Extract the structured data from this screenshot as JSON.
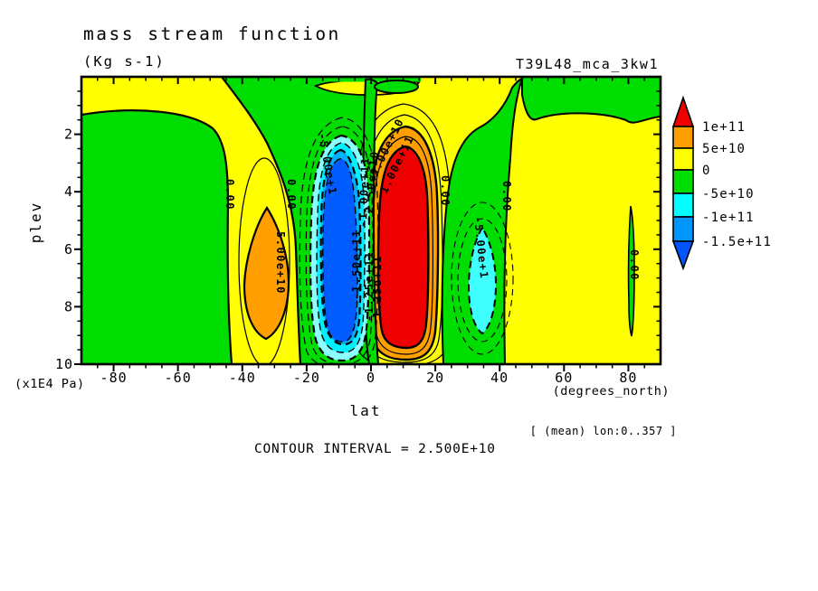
{
  "header": {
    "title": "mass stream function",
    "units": "(Kg s-1)",
    "run_id": "T39L48_mca_3kw1"
  },
  "axes": {
    "x": {
      "label": "lat",
      "units_note": "(degrees_north)",
      "tick_labels": [
        "-80",
        "-60",
        "-40",
        "-20",
        "0",
        "20",
        "40",
        "60",
        "80"
      ]
    },
    "y": {
      "label": "plev",
      "units_note": "(x1E4 Pa)",
      "tick_labels": [
        "2",
        "4",
        "6",
        "8",
        "10"
      ]
    }
  },
  "colorbar": {
    "labels": [
      "1e+11",
      "5e+10",
      "0",
      "-5e+10",
      "-1e+11",
      "-1.5e+11"
    ],
    "above_color": "#ee0000",
    "band_colors_top_to_bottom": [
      "#ffa000",
      "#ffff00",
      "#00dd00",
      "#00ffff",
      "#0096ff"
    ],
    "below_color": "#0055ff"
  },
  "footer": {
    "contour_interval": "CONTOUR INTERVAL = 2.500E+10",
    "mean_note": "[ (mean) lon:0..357 ]"
  },
  "contour_labels": [
    {
      "text": "5.00e+10",
      "lat": -30,
      "plev": 5.4
    },
    {
      "text": "0.00",
      "lat": -45,
      "plev": 3.5
    },
    {
      "text": "0.00",
      "lat": -26,
      "plev": 3.5
    },
    {
      "text": "-5.00e+1",
      "lat": -17,
      "plev": 2.0
    },
    {
      "text": "-1.50e+11",
      "lat": -3,
      "plev": 7.8
    },
    {
      "text": "-1.00e+11",
      "lat": -2,
      "plev": 5.2
    },
    {
      "text": "-2.50e+10",
      "lat": -1,
      "plev": 5.0
    },
    {
      "text": "5.00e+10",
      "lat": 2,
      "plev": 3.5
    },
    {
      "text": "1.00e+11",
      "lat": 5,
      "plev": 4.0
    },
    {
      "text": "1.25e+11",
      "lat": 3,
      "plev": 8.4
    },
    {
      "text": "-1.25e+11",
      "lat": 0,
      "plev": 8.5
    },
    {
      "text": "0.00",
      "lat": 22,
      "plev": 3.4
    },
    {
      "text": "0.00",
      "lat": 41,
      "plev": 3.6
    },
    {
      "text": "-5.00e+1",
      "lat": 31,
      "plev": 4.9
    },
    {
      "text": "0.00",
      "lat": 81,
      "plev": 6.0
    }
  ],
  "chart_data": {
    "type": "heatmap",
    "subtype": "filled_contour_latitude_pressure_section",
    "title": "mass stream function",
    "units": "Kg s-1",
    "dataset": "T39L48_mca_3kw1",
    "xlabel": "lat (degrees_north)",
    "ylabel": "plev (x1E4 Pa)",
    "xlim": [
      -90,
      90
    ],
    "ylim_top_to_bottom": [
      0,
      10
    ],
    "x_ticks": [
      -80,
      -60,
      -40,
      -20,
      0,
      20,
      40,
      60,
      80
    ],
    "x_minor_step": 5,
    "y_ticks": [
      2,
      4,
      6,
      8,
      10
    ],
    "y_minor_step": 0.5,
    "grid": false,
    "contour_interval": 25000000000,
    "fill_levels": [
      -150000000000,
      -100000000000,
      -50000000000,
      0,
      50000000000,
      100000000000
    ],
    "fill_colors_low_to_high": [
      "#0055ff",
      "#0096ff",
      "#00ffff",
      "#00dd00",
      "#ffff00",
      "#ffa000",
      "#ee0000"
    ],
    "negative_contours_dashed": true,
    "zero_contour_thick": true,
    "legend_position": "right-colorbar",
    "mean_over": "lon:0..357",
    "features": [
      {
        "name": "tropical positive cell (red)",
        "center_lat": 11,
        "lat_range": [
          2,
          22
        ],
        "plev_range": [
          1.7,
          9.6
        ],
        "peak_value": "> 1.25e+11"
      },
      {
        "name": "tropical negative cell (blue)",
        "center_lat": -9,
        "lat_range": [
          -20,
          -1
        ],
        "plev_range": [
          1.9,
          9.8
        ],
        "peak_value": "< -1.5e+11"
      },
      {
        "name": "southern subtropical positive cell (orange)",
        "center_lat": -30,
        "lat_range": [
          -38,
          -24
        ],
        "plev_range": [
          4.5,
          9.2
        ],
        "peak_value": "~ 7.0e+10"
      },
      {
        "name": "northern midlatitude negative cell (cyan)",
        "center_lat": 33,
        "lat_range": [
          28,
          38
        ],
        "plev_range": [
          5.2,
          9.0
        ],
        "peak_value": "~ -6e+10"
      },
      {
        "name": "weak zero-line sliver near 80N",
        "center_lat": 81,
        "lat_range": [
          80,
          82
        ],
        "plev_range": [
          4.5,
          9.0
        ],
        "peak_value": "~ 0"
      }
    ]
  }
}
